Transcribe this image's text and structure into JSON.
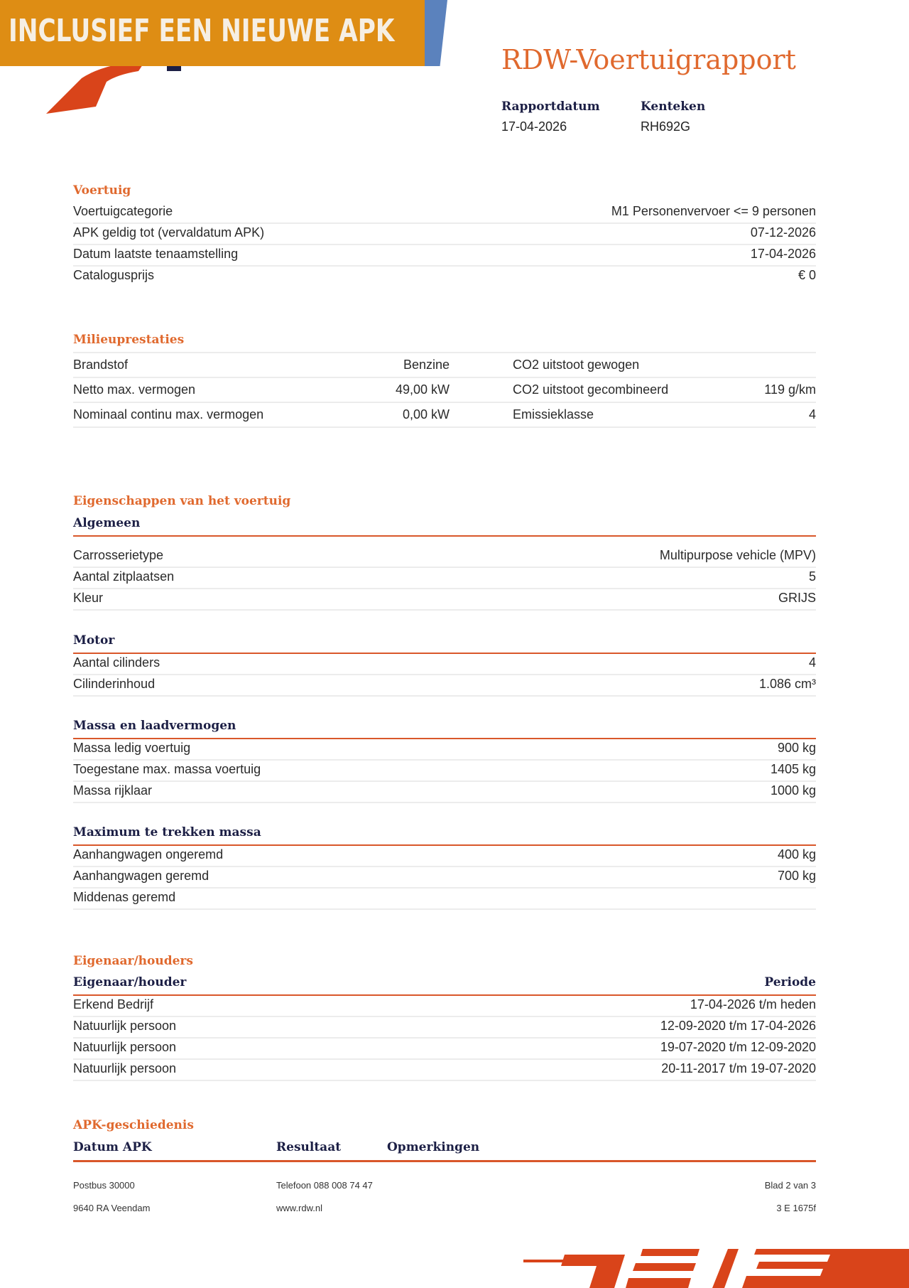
{
  "banner": {
    "text": "INCLUSIEF EEN NIEUWE APK",
    "color": "#de8d14",
    "accent": "#5b82bd"
  },
  "header": {
    "title": "RDW-Voertuigrapport",
    "rapportdatum_label": "Rapportdatum",
    "rapportdatum": "17-04-2026",
    "kenteken_label": "Kenteken",
    "kenteken": "RH692G"
  },
  "voertuig": {
    "title": "Voertuig",
    "rows": [
      {
        "label": "Voertuigcategorie",
        "value": "M1 Personenvervoer <= 9 personen"
      },
      {
        "label": "APK geldig tot (vervaldatum APK)",
        "value": "07-12-2026"
      },
      {
        "label": "Datum laatste tenaamstelling",
        "value": "17-04-2026"
      },
      {
        "label": "Catalogusprijs",
        "value": "€ 0"
      }
    ]
  },
  "milieu": {
    "title": "Milieuprestaties",
    "rows": [
      {
        "label": "Brandstof",
        "value": "Benzine",
        "label2": "CO2 uitstoot gewogen",
        "value2": ""
      },
      {
        "label": "Netto max. vermogen",
        "value": "49,00 kW",
        "label2": "CO2 uitstoot gecombineerd",
        "value2": "119 g/km"
      },
      {
        "label": "Nominaal continu max. vermogen",
        "value": "0,00 kW",
        "label2": "Emissieklasse",
        "value2": "4"
      }
    ]
  },
  "eigenschappen": {
    "title": "Eigenschappen van het voertuig",
    "algemeen": {
      "title": "Algemeen",
      "rows": [
        {
          "label": "Carrosserietype",
          "value": "Multipurpose vehicle (MPV)"
        },
        {
          "label": "Aantal zitplaatsen",
          "value": "5"
        },
        {
          "label": "Kleur",
          "value": "GRIJS"
        }
      ]
    },
    "motor": {
      "title": "Motor",
      "rows": [
        {
          "label": "Aantal cilinders",
          "value": "4"
        },
        {
          "label": "Cilinderinhoud",
          "value": "1.086 cm³"
        }
      ]
    },
    "massa": {
      "title": "Massa en laadvermogen",
      "rows": [
        {
          "label": "Massa ledig voertuig",
          "value": "900 kg"
        },
        {
          "label": "Toegestane max. massa voertuig",
          "value": "1405 kg"
        },
        {
          "label": "Massa rijklaar",
          "value": "1000 kg"
        }
      ]
    },
    "trekken": {
      "title": "Maximum te trekken massa",
      "rows": [
        {
          "label": "Aanhangwagen ongeremd",
          "value": "400 kg"
        },
        {
          "label": "Aanhangwagen geremd",
          "value": "700 kg"
        },
        {
          "label": "Middenas geremd",
          "value": ""
        }
      ]
    }
  },
  "eigenaar": {
    "title": "Eigenaar/houders",
    "col1": "Eigenaar/houder",
    "col2": "Periode",
    "rows": [
      {
        "label": "Erkend Bedrijf",
        "value": "17-04-2026 t/m heden"
      },
      {
        "label": "Natuurlijk persoon",
        "value": "12-09-2020 t/m 17-04-2026"
      },
      {
        "label": "Natuurlijk persoon",
        "value": "19-07-2020 t/m 12-09-2020"
      },
      {
        "label": "Natuurlijk persoon",
        "value": "20-11-2017 t/m 19-07-2020"
      }
    ]
  },
  "apk": {
    "title": "APK-geschiedenis",
    "col1": "Datum APK",
    "col2": "Resultaat",
    "col3": "Opmerkingen"
  },
  "footer": {
    "address1": "Postbus 30000",
    "address2": "9640 RA Veendam",
    "phone": "Telefoon 088 008 74 47",
    "web": "www.rdw.nl",
    "page": "Blad 2 van 3",
    "code": "3 E 1675f"
  }
}
